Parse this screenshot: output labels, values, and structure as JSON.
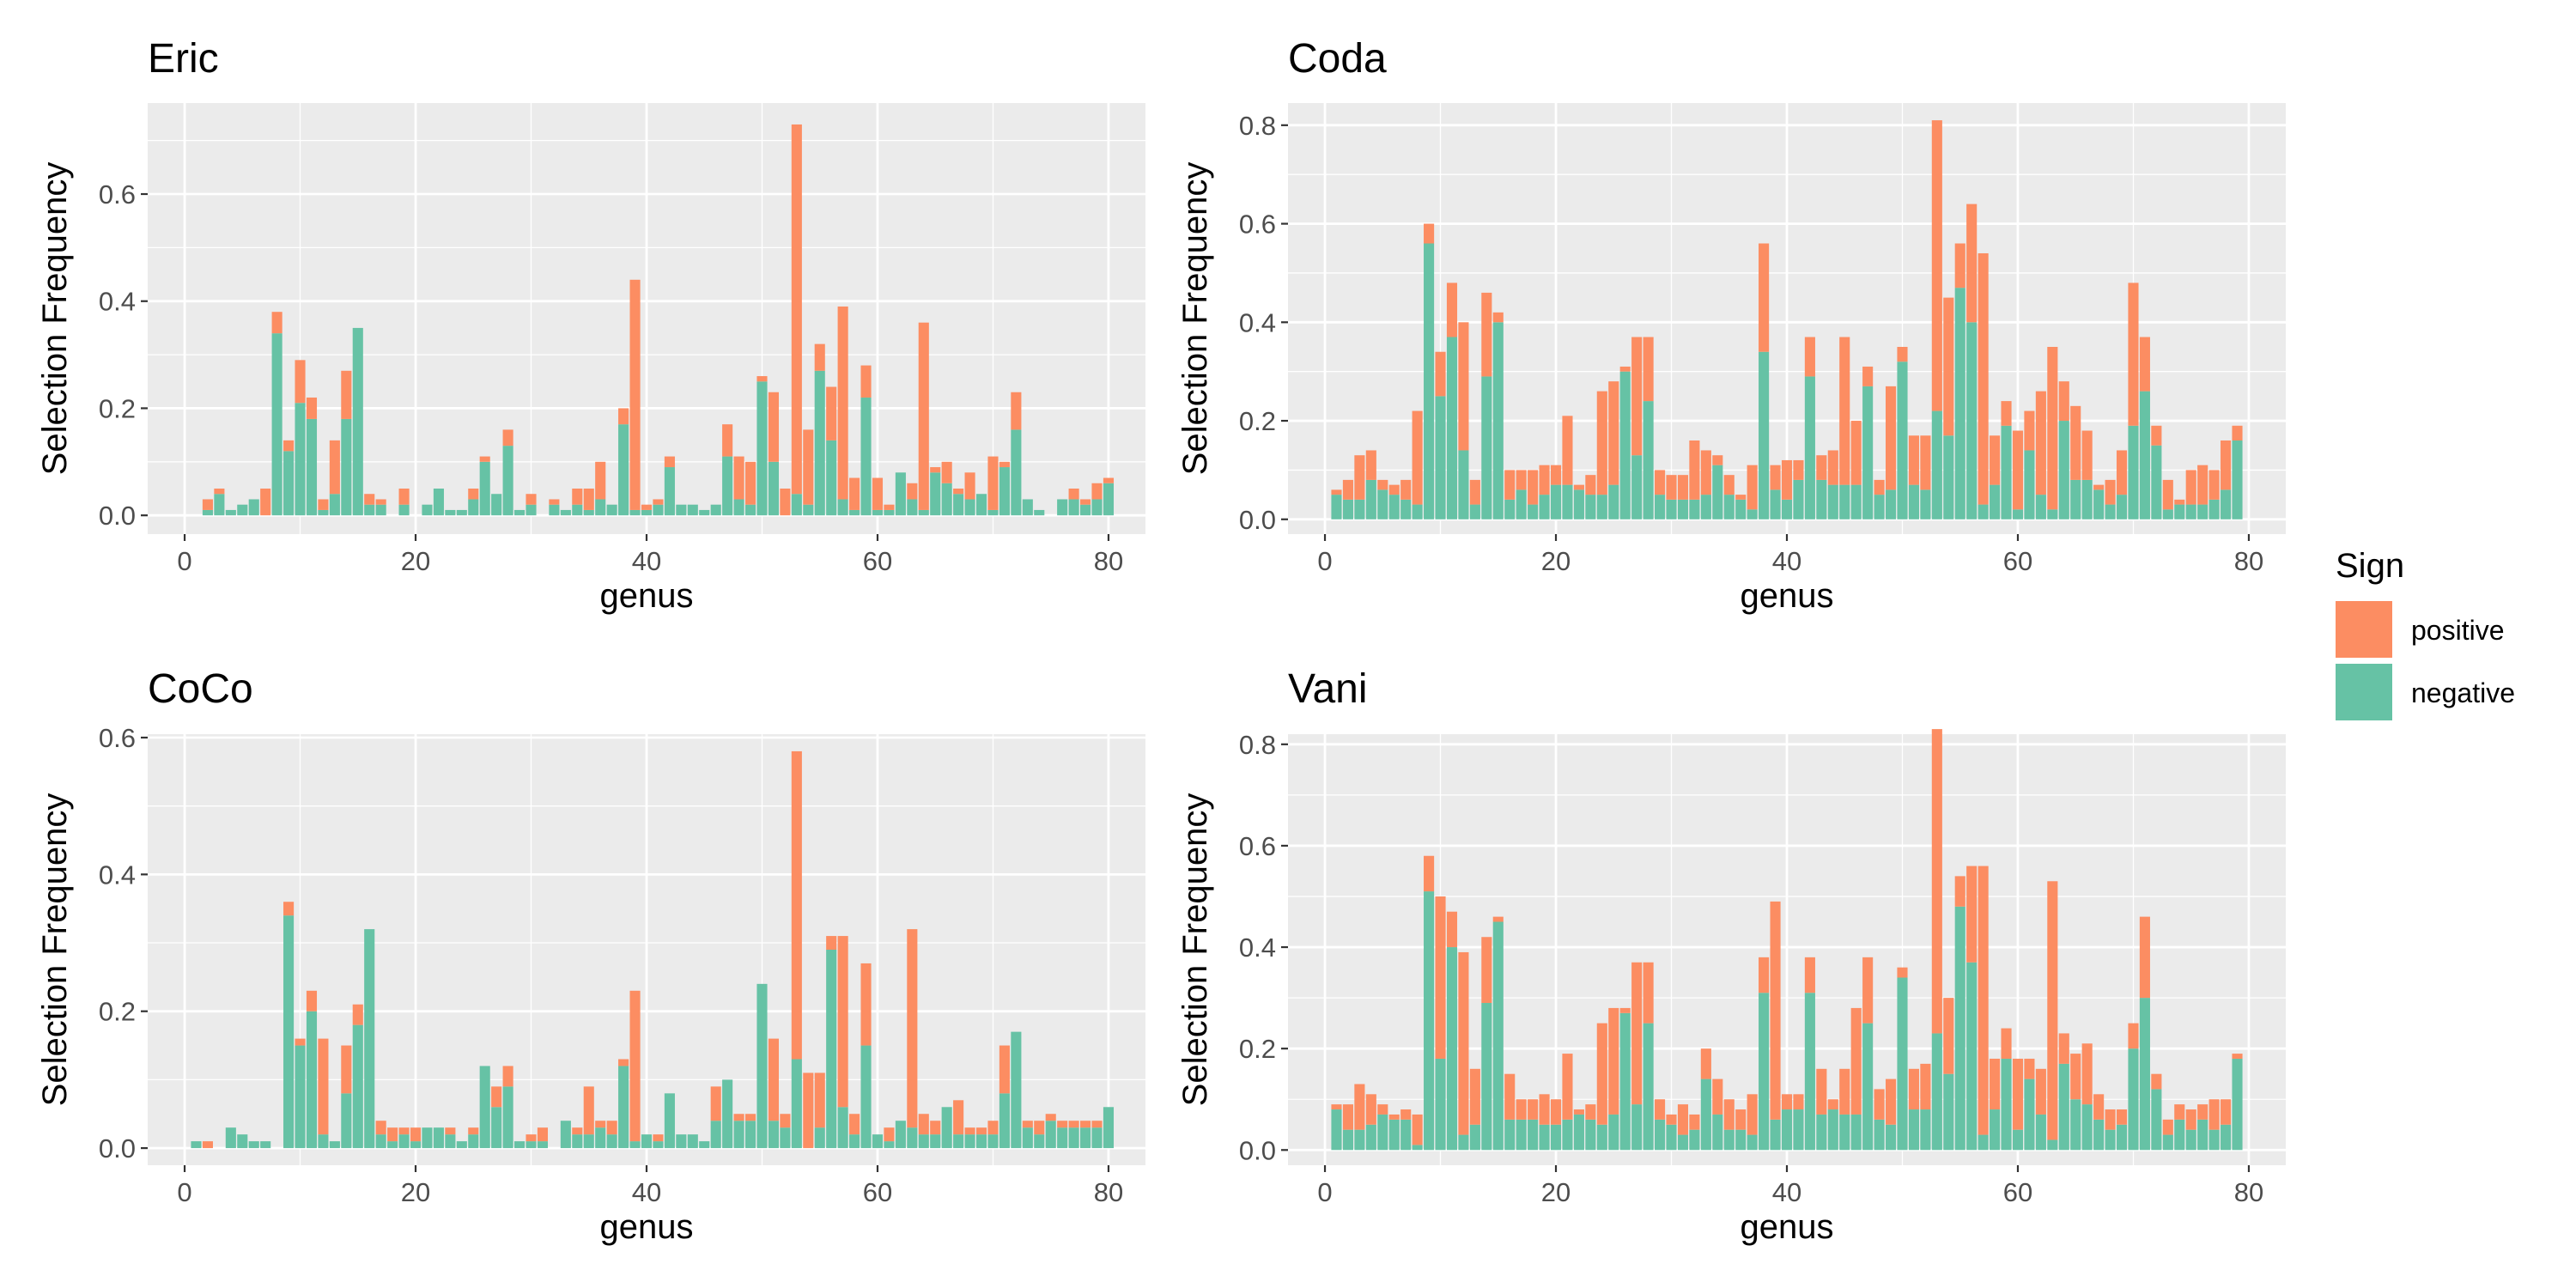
{
  "colors": {
    "positive": "#FC8D62",
    "negative": "#66C2A5",
    "panel_bg": "#EBEBEB",
    "grid": "#FFFFFF",
    "tick": "#333333"
  },
  "legend": {
    "title": "Sign",
    "items": [
      {
        "label": "positive",
        "color": "#FC8D62"
      },
      {
        "label": "negative",
        "color": "#66C2A5"
      }
    ]
  },
  "chart_data": [
    {
      "type": "bar",
      "stacked": true,
      "title": "Eric",
      "xlabel": "genus",
      "ylabel": "Selection Frequency",
      "xlim": [
        -3.2,
        83.2
      ],
      "ylim": [
        -0.035,
        0.77
      ],
      "x_ticks": [
        0,
        20,
        40,
        60,
        80
      ],
      "y_ticks": [
        0.0,
        0.2,
        0.4,
        0.6
      ],
      "y_tick_labels": [
        "0.0",
        "0.2",
        "0.4",
        "0.6"
      ],
      "series": [
        {
          "name": "negative",
          "values": [
            0,
            0,
            0.01,
            0.04,
            0.01,
            0.02,
            0.03,
            0,
            0.34,
            0.12,
            0.21,
            0.18,
            0.01,
            0.04,
            0.18,
            0.35,
            0.02,
            0.02,
            0,
            0.02,
            0,
            0.02,
            0.05,
            0.01,
            0.01,
            0.03,
            0.1,
            0.04,
            0.13,
            0.01,
            0.02,
            0,
            0.02,
            0.01,
            0.02,
            0.01,
            0.03,
            0.02,
            0.17,
            0.01,
            0.01,
            0.02,
            0.09,
            0.02,
            0.02,
            0.01,
            0.02,
            0.11,
            0.03,
            0.02,
            0.25,
            0.1,
            0,
            0.04,
            0.02,
            0.27,
            0.14,
            0.03,
            0.01,
            0.22,
            0.01,
            0.01,
            0.08,
            0.03,
            0.01,
            0.08,
            0.06,
            0.04,
            0.03,
            0.04,
            0.01,
            0.09,
            0.16,
            0.03,
            0.01,
            0,
            0.03,
            0.03,
            0.02,
            0.03,
            0.06
          ]
        },
        {
          "name": "positive",
          "values": [
            0,
            0,
            0.02,
            0.01,
            0,
            0,
            0,
            0.05,
            0.04,
            0.02,
            0.08,
            0.04,
            0.02,
            0.1,
            0.09,
            0,
            0.02,
            0.01,
            0,
            0.03,
            0,
            0,
            0,
            0,
            0,
            0.02,
            0.01,
            0,
            0.03,
            0,
            0.02,
            0,
            0.01,
            0,
            0.03,
            0.04,
            0.07,
            0,
            0.03,
            0.43,
            0.01,
            0.01,
            0.02,
            0,
            0,
            0,
            0,
            0.06,
            0.08,
            0.08,
            0.01,
            0.13,
            0.05,
            0.69,
            0.14,
            0.05,
            0.1,
            0.36,
            0.06,
            0.06,
            0.06,
            0.01,
            0,
            0.03,
            0.35,
            0.01,
            0.04,
            0.01,
            0.05,
            0,
            0.1,
            0.01,
            0.07,
            0,
            0,
            0,
            0,
            0.02,
            0.01,
            0.03,
            0.01
          ]
        }
      ]
    },
    {
      "type": "bar",
      "stacked": true,
      "title": "Coda",
      "xlabel": "genus",
      "ylabel": "Selection Frequency",
      "xlim": [
        -3.2,
        83.2
      ],
      "ylim": [
        -0.03,
        0.845
      ],
      "x_ticks": [
        0,
        20,
        40,
        60,
        80
      ],
      "y_ticks": [
        0.0,
        0.2,
        0.4,
        0.6,
        0.8
      ],
      "y_tick_labels": [
        "0.0",
        "0.2",
        "0.4",
        "0.6",
        "0.8"
      ],
      "series": [
        {
          "name": "negative",
          "values": [
            0,
            0.05,
            0.04,
            0.04,
            0.08,
            0.06,
            0.05,
            0.04,
            0.03,
            0.56,
            0.25,
            0.37,
            0.14,
            0.03,
            0.29,
            0.4,
            0.04,
            0.06,
            0.03,
            0.05,
            0.07,
            0.07,
            0.06,
            0.05,
            0.05,
            0.07,
            0.3,
            0.13,
            0.24,
            0.05,
            0.04,
            0.04,
            0.04,
            0.05,
            0.11,
            0.05,
            0.04,
            0.02,
            0.34,
            0.06,
            0.04,
            0.08,
            0.29,
            0.08,
            0.07,
            0.07,
            0.07,
            0.27,
            0.05,
            0.06,
            0.32,
            0.07,
            0.06,
            0.22,
            0.17,
            0.47,
            0.4,
            0.03,
            0.07,
            0.19,
            0.02,
            0.14,
            0.05,
            0.02,
            0.2,
            0.08,
            0.08,
            0.06,
            0.03,
            0.05,
            0.19,
            0.26,
            0.15,
            0.02,
            0.03,
            0.03,
            0.03,
            0.04,
            0.06,
            0.16
          ]
        },
        {
          "name": "positive",
          "values": [
            0,
            0.01,
            0.04,
            0.09,
            0.06,
            0.02,
            0.02,
            0.04,
            0.19,
            0.04,
            0.09,
            0.11,
            0.26,
            0.05,
            0.17,
            0.02,
            0.06,
            0.04,
            0.07,
            0.06,
            0.04,
            0.14,
            0.01,
            0.04,
            0.21,
            0.21,
            0.01,
            0.24,
            0.13,
            0.05,
            0.05,
            0.05,
            0.12,
            0.09,
            0.02,
            0.04,
            0.01,
            0.09,
            0.22,
            0.05,
            0.08,
            0.04,
            0.08,
            0.05,
            0.07,
            0.3,
            0.13,
            0.04,
            0.03,
            0.21,
            0.03,
            0.1,
            0.11,
            0.59,
            0.28,
            0.09,
            0.24,
            0.51,
            0.1,
            0.05,
            0.16,
            0.08,
            0.21,
            0.33,
            0.08,
            0.15,
            0.1,
            0.01,
            0.05,
            0.09,
            0.29,
            0.11,
            0.04,
            0.06,
            0.01,
            0.07,
            0.08,
            0.06,
            0.1,
            0.03
          ]
        }
      ]
    },
    {
      "type": "bar",
      "stacked": true,
      "title": "CoCo",
      "xlabel": "genus",
      "ylabel": "Selection Frequency",
      "xlim": [
        -3.2,
        83.2
      ],
      "ylim": [
        -0.025,
        0.605
      ],
      "x_ticks": [
        0,
        20,
        40,
        60,
        80
      ],
      "y_ticks": [
        0.0,
        0.2,
        0.4,
        0.6
      ],
      "y_tick_labels": [
        "0.0",
        "0.2",
        "0.4",
        "0.6"
      ],
      "series": [
        {
          "name": "negative",
          "values": [
            0,
            0.01,
            0,
            0,
            0.03,
            0.02,
            0.01,
            0.01,
            0,
            0.34,
            0.15,
            0.2,
            0.02,
            0.01,
            0.08,
            0.18,
            0.32,
            0.02,
            0.01,
            0.02,
            0.01,
            0.03,
            0.03,
            0.02,
            0.01,
            0.02,
            0.12,
            0.06,
            0.09,
            0.01,
            0.01,
            0.01,
            0,
            0.04,
            0.02,
            0.02,
            0.03,
            0.02,
            0.12,
            0.01,
            0.02,
            0.01,
            0.08,
            0.02,
            0.02,
            0.01,
            0.04,
            0.1,
            0.04,
            0.04,
            0.24,
            0.04,
            0.03,
            0.13,
            0,
            0.03,
            0.29,
            0.06,
            0.02,
            0.15,
            0.02,
            0.01,
            0.04,
            0.03,
            0.02,
            0.02,
            0.06,
            0.02,
            0.02,
            0.02,
            0.02,
            0.08,
            0.17,
            0.03,
            0.02,
            0.04,
            0.03,
            0.03,
            0.03,
            0.03,
            0.06
          ]
        },
        {
          "name": "positive",
          "values": [
            0,
            0,
            0.01,
            0,
            0,
            0,
            0,
            0,
            0,
            0.02,
            0.01,
            0.03,
            0.14,
            0,
            0.07,
            0.03,
            0,
            0.02,
            0.02,
            0.01,
            0.02,
            0,
            0,
            0.01,
            0,
            0.01,
            0,
            0.03,
            0.03,
            0,
            0.01,
            0.02,
            0,
            0,
            0.01,
            0.07,
            0.01,
            0.02,
            0.01,
            0.22,
            0,
            0.01,
            0,
            0,
            0,
            0,
            0.05,
            0,
            0.01,
            0.01,
            0,
            0.12,
            0.02,
            0.45,
            0.11,
            0.08,
            0.02,
            0.25,
            0.03,
            0.12,
            0,
            0.02,
            0,
            0.29,
            0.03,
            0.02,
            0,
            0.05,
            0.01,
            0.01,
            0.02,
            0.07,
            0,
            0.01,
            0.02,
            0.01,
            0.01,
            0.01,
            0.01,
            0.01,
            0
          ]
        }
      ]
    },
    {
      "type": "bar",
      "stacked": true,
      "title": "Vani",
      "xlabel": "genus",
      "ylabel": "Selection Frequency",
      "xlim": [
        -3.2,
        83.2
      ],
      "ylim": [
        -0.03,
        0.82
      ],
      "x_ticks": [
        0,
        20,
        40,
        60,
        80
      ],
      "y_ticks": [
        0.0,
        0.2,
        0.4,
        0.6,
        0.8
      ],
      "y_tick_labels": [
        "0.0",
        "0.2",
        "0.4",
        "0.6",
        "0.8"
      ],
      "series": [
        {
          "name": "negative",
          "values": [
            0,
            0.08,
            0.04,
            0.04,
            0.05,
            0.07,
            0.06,
            0.06,
            0.01,
            0.51,
            0.18,
            0.4,
            0.03,
            0.05,
            0.29,
            0.45,
            0.06,
            0.06,
            0.06,
            0.05,
            0.05,
            0.06,
            0.07,
            0.06,
            0.05,
            0.07,
            0.27,
            0.09,
            0.25,
            0.06,
            0.05,
            0.03,
            0.04,
            0.14,
            0.07,
            0.04,
            0.04,
            0.03,
            0.31,
            0.06,
            0.08,
            0.08,
            0.31,
            0.07,
            0.08,
            0.07,
            0.07,
            0.25,
            0.06,
            0.05,
            0.34,
            0.08,
            0.08,
            0.23,
            0.15,
            0.48,
            0.37,
            0.03,
            0.08,
            0.18,
            0.04,
            0.14,
            0.07,
            0.02,
            0.17,
            0.1,
            0.09,
            0.06,
            0.04,
            0.05,
            0.2,
            0.3,
            0.12,
            0.03,
            0.06,
            0.04,
            0.06,
            0.04,
            0.05,
            0.18
          ]
        },
        {
          "name": "positive",
          "values": [
            0,
            0.01,
            0.05,
            0.09,
            0.06,
            0.02,
            0.01,
            0.02,
            0.06,
            0.07,
            0.32,
            0.07,
            0.36,
            0.11,
            0.13,
            0.01,
            0.09,
            0.04,
            0.04,
            0.06,
            0.05,
            0.13,
            0.01,
            0.03,
            0.2,
            0.21,
            0.01,
            0.28,
            0.12,
            0.04,
            0.02,
            0.06,
            0.03,
            0.06,
            0.07,
            0.06,
            0.04,
            0.08,
            0.07,
            0.43,
            0.03,
            0.03,
            0.07,
            0.09,
            0.02,
            0.09,
            0.21,
            0.13,
            0.06,
            0.09,
            0.02,
            0.08,
            0.09,
            0.6,
            0.15,
            0.06,
            0.19,
            0.53,
            0.1,
            0.06,
            0.14,
            0.04,
            0.09,
            0.51,
            0.06,
            0.09,
            0.12,
            0.05,
            0.04,
            0.03,
            0.05,
            0.16,
            0.03,
            0.03,
            0.03,
            0.04,
            0.03,
            0.06,
            0.05,
            0.01
          ]
        }
      ]
    }
  ]
}
